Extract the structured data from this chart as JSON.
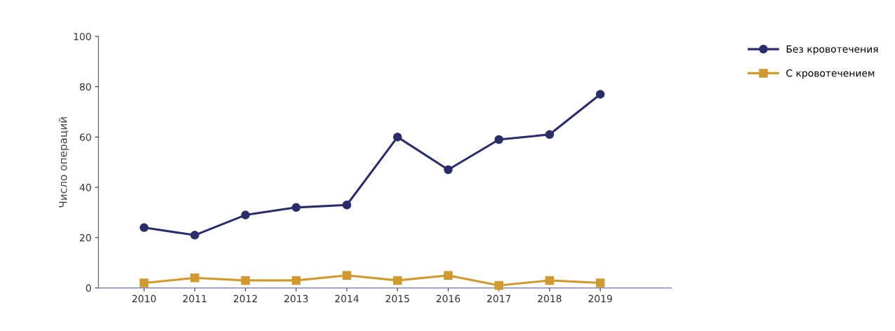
{
  "chart_data": {
    "type": "line",
    "ylabel": "Число операций",
    "categories": [
      "2010",
      "2011",
      "2012",
      "2013",
      "2014",
      "2015",
      "2016",
      "2017",
      "2018",
      "2019"
    ],
    "series": [
      {
        "name": "Без кровотечения",
        "color": "#2b2d6b",
        "marker": "circle",
        "values": [
          24,
          21,
          29,
          32,
          33,
          60,
          47,
          59,
          61,
          77
        ]
      },
      {
        "name": "С кровотечением",
        "color": "#d19a2e",
        "marker": "square",
        "values": [
          2,
          4,
          3,
          3,
          5,
          3,
          5,
          1,
          3,
          2
        ]
      }
    ],
    "ylim": [
      0,
      100
    ],
    "yticks": [
      0,
      20,
      40,
      60,
      80,
      100
    ],
    "grid": false,
    "legend": "top right",
    "line_style": "solid"
  }
}
